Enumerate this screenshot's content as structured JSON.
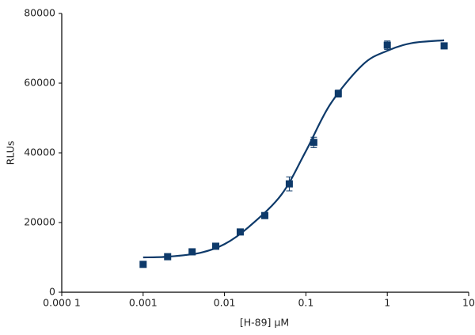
{
  "chart_data": {
    "type": "scatter",
    "xlabel": "[H-89] μM",
    "ylabel": "RLUs",
    "xscale": "log",
    "xlim": [
      0.0001,
      10
    ],
    "ylim": [
      0,
      80000
    ],
    "xticks": [
      {
        "value": 0.0001,
        "label": "0.000 1"
      },
      0.001,
      0.01,
      0.1,
      1,
      10
    ],
    "yticks": [
      0,
      20000,
      40000,
      60000,
      80000
    ],
    "grid": false,
    "series": [
      {
        "kind": "points",
        "color": "#0e3a6a",
        "x": [
          0.001,
          0.002,
          0.004,
          0.0078,
          0.0156,
          0.03125,
          0.0625,
          0.125,
          0.25,
          1,
          5
        ],
        "values": [
          8000,
          10200,
          11600,
          13200,
          17300,
          22000,
          31100,
          43000,
          57000,
          70900,
          70700
        ],
        "errors": [
          null,
          null,
          null,
          null,
          null,
          null,
          2000,
          1500,
          1000,
          1200,
          null
        ]
      },
      {
        "kind": "line",
        "color": "#0e3a6a",
        "x": [
          0.001,
          0.002,
          0.005,
          0.01,
          0.02,
          0.05,
          0.1,
          0.2,
          0.5,
          1,
          2,
          5
        ],
        "values": [
          10000,
          10200,
          11300,
          13800,
          18800,
          28000,
          40500,
          54000,
          65300,
          69300,
          71500,
          72300
        ]
      }
    ]
  }
}
